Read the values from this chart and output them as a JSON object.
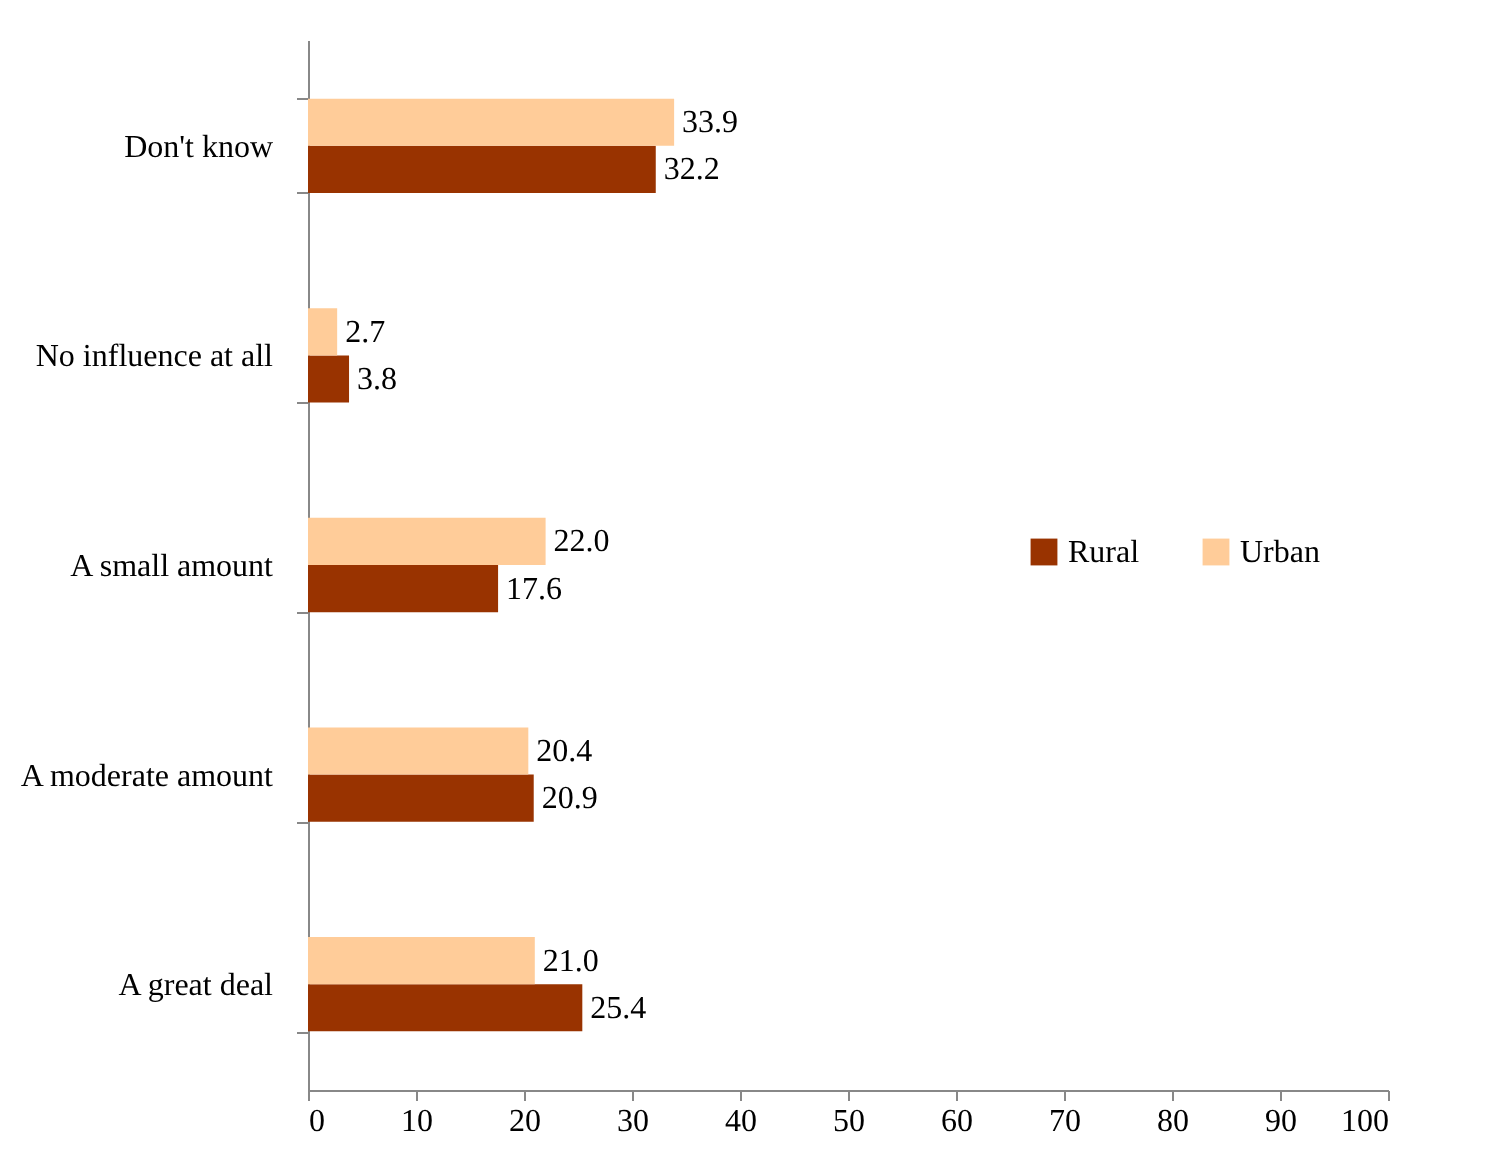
{
  "chart_data": {
    "type": "bar",
    "orientation": "horizontal",
    "categories": [
      "Don't know",
      "No influence at all",
      "A small amount",
      "A moderate amount",
      "A great deal"
    ],
    "series": [
      {
        "name": "Rural",
        "color": "#993300",
        "values": [
          32.2,
          3.8,
          17.6,
          20.9,
          25.4
        ],
        "value_labels": [
          "32.2",
          "3.8",
          "17.6",
          "20.9",
          "25.4"
        ]
      },
      {
        "name": "Urban",
        "color": "#ffcc99",
        "values": [
          33.9,
          2.7,
          22.0,
          20.4,
          21.0
        ],
        "value_labels": [
          "33.9",
          "2.7",
          "22.0",
          "20.4",
          "21.0"
        ]
      }
    ],
    "xlim": [
      0,
      100
    ],
    "xticks": [
      0,
      10,
      20,
      30,
      40,
      50,
      60,
      70,
      80,
      90,
      100
    ],
    "grid": false,
    "legend": "right"
  }
}
